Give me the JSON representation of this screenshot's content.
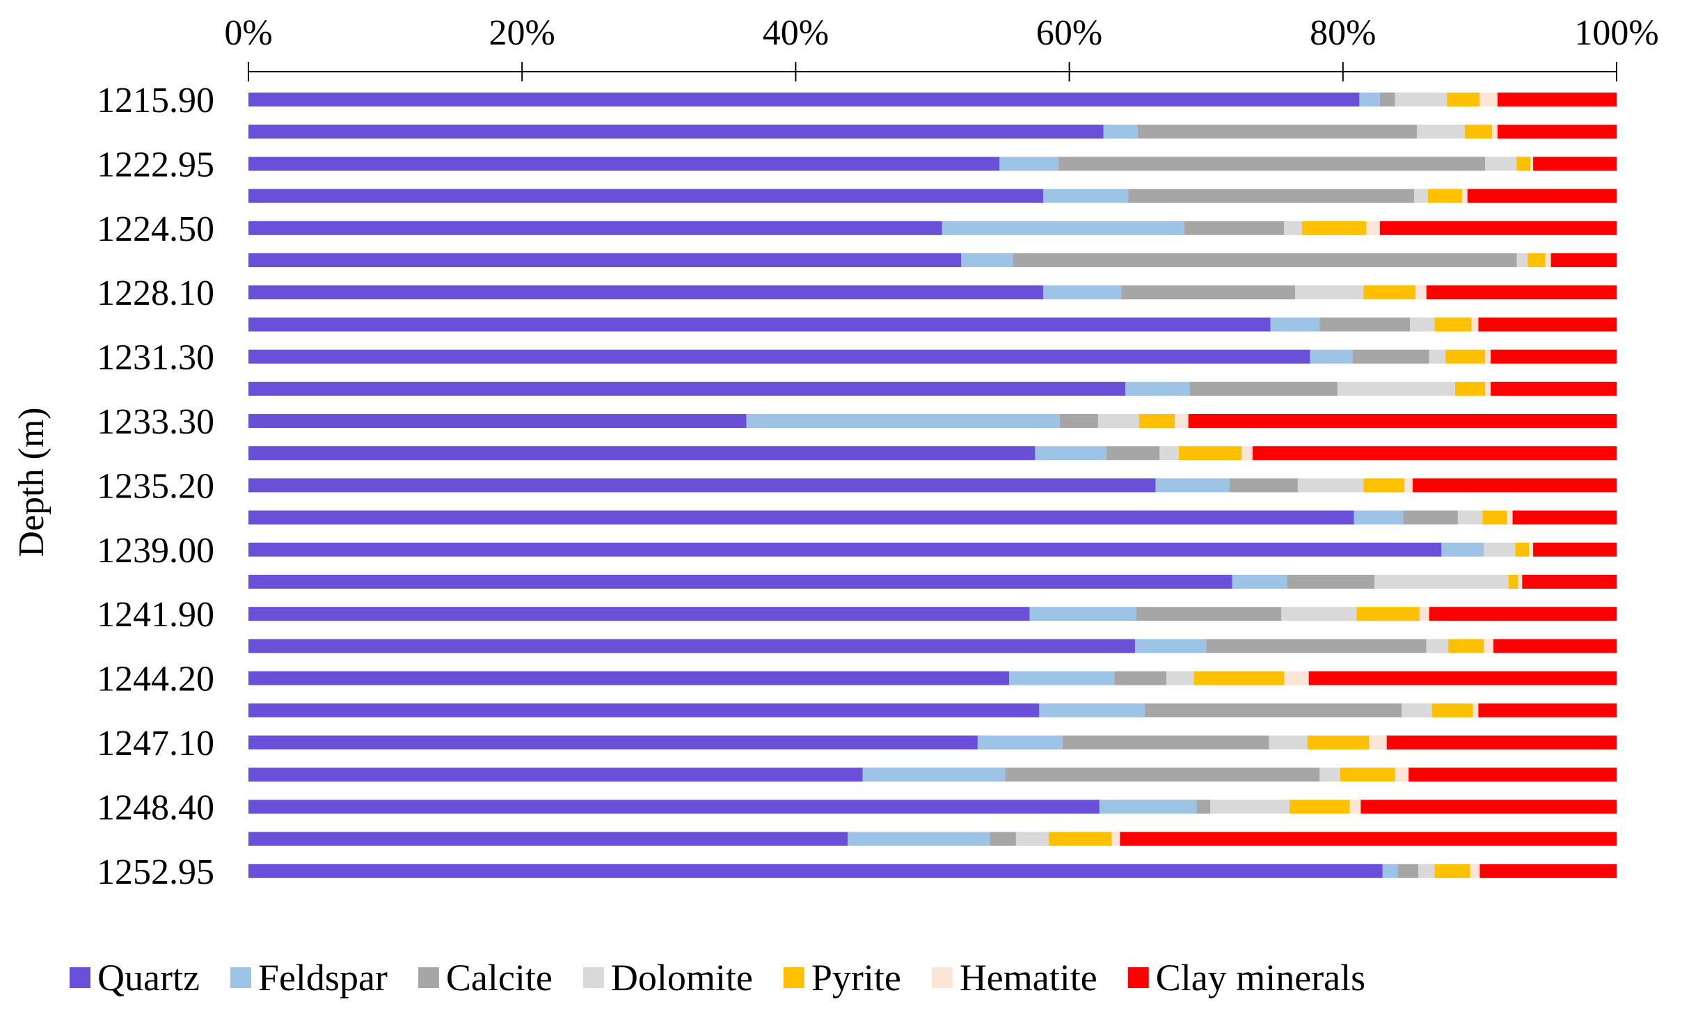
{
  "chart_data": {
    "type": "bar",
    "orientation": "horizontal",
    "stacked": true,
    "normalized_percent": true,
    "title": "",
    "ylabel": "Depth (m)",
    "xlabel": "",
    "xlim": [
      0,
      100
    ],
    "x_ticks": [
      "0%",
      "20%",
      "40%",
      "60%",
      "80%",
      "100%"
    ],
    "x_tick_values": [
      0,
      20,
      40,
      60,
      80,
      100
    ],
    "x_axis_position": "top",
    "legend_position": "bottom",
    "grid": false,
    "categories": [
      "1215.90",
      "",
      "1222.95",
      "",
      "1224.50",
      "",
      "1228.10",
      "",
      "1231.30",
      "",
      "1233.30",
      "",
      "1235.20",
      "",
      "1239.00",
      "",
      "1241.90",
      "",
      "1244.20",
      "",
      "1247.10",
      "",
      "1248.40",
      "",
      "1252.95"
    ],
    "series": [
      {
        "name": "Quartz",
        "color": "#6a4fd8",
        "values": [
          81.2,
          62.5,
          54.9,
          58.1,
          50.7,
          52.1,
          58.1,
          74.7,
          77.6,
          64.1,
          36.4,
          57.5,
          66.3,
          80.8,
          87.2,
          71.9,
          57.1,
          64.8,
          55.6,
          57.8,
          53.3,
          44.9,
          62.2,
          43.8,
          82.9
        ]
      },
      {
        "name": "Feldspar",
        "color": "#9dc3e6",
        "values": [
          1.5,
          2.5,
          4.3,
          6.2,
          17.7,
          3.8,
          5.7,
          3.6,
          3.1,
          4.7,
          22.9,
          5.2,
          5.4,
          3.6,
          3.1,
          4.0,
          7.8,
          5.2,
          7.7,
          7.7,
          6.2,
          10.4,
          7.1,
          10.4,
          1.1
        ]
      },
      {
        "name": "Calcite",
        "color": "#a6a6a6",
        "values": [
          1.1,
          20.4,
          31.2,
          20.9,
          7.3,
          36.8,
          12.7,
          6.6,
          5.6,
          10.8,
          2.8,
          3.9,
          5.0,
          4.0,
          0.0,
          6.4,
          10.6,
          16.1,
          3.8,
          18.8,
          15.1,
          23.0,
          1.0,
          1.9,
          1.5
        ]
      },
      {
        "name": "Dolomite",
        "color": "#d9d9d9",
        "values": [
          3.8,
          3.5,
          2.3,
          1.0,
          1.3,
          0.8,
          5.0,
          1.8,
          1.2,
          8.6,
          3.0,
          1.4,
          4.8,
          1.8,
          2.3,
          9.8,
          5.5,
          1.6,
          2.0,
          2.2,
          2.8,
          1.5,
          5.8,
          2.4,
          1.2
        ]
      },
      {
        "name": "Pyrite",
        "color": "#ffc000",
        "values": [
          2.4,
          2.0,
          1.0,
          2.5,
          4.7,
          1.3,
          3.8,
          2.7,
          2.9,
          2.2,
          2.6,
          4.6,
          3.0,
          1.8,
          1.0,
          0.7,
          4.6,
          2.6,
          6.6,
          3.0,
          4.5,
          4.0,
          4.4,
          4.6,
          2.6
        ]
      },
      {
        "name": "Hematite",
        "color": "#fbe5d6",
        "values": [
          1.3,
          0.4,
          0.2,
          0.4,
          1.0,
          0.4,
          0.8,
          0.5,
          0.4,
          0.4,
          1.0,
          0.8,
          0.6,
          0.4,
          0.3,
          0.3,
          0.7,
          0.7,
          1.8,
          0.4,
          1.3,
          1.0,
          0.8,
          0.6,
          0.7
        ]
      },
      {
        "name": "Clay minerals",
        "color": "#ff0000",
        "values": [
          8.7,
          8.7,
          6.1,
          10.9,
          17.3,
          4.8,
          13.9,
          10.1,
          9.2,
          9.2,
          31.3,
          26.6,
          14.9,
          7.6,
          6.1,
          6.9,
          13.7,
          9.0,
          22.5,
          10.1,
          16.8,
          15.2,
          18.7,
          36.3,
          10.0
        ]
      }
    ]
  }
}
